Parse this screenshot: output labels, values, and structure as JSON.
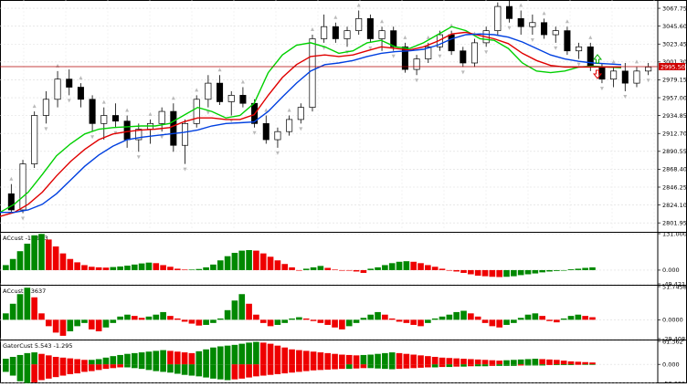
{
  "chart_data": {
    "type": "candlestick",
    "panels": [
      {
        "id": "price",
        "y_ticks": [
          3067.75,
          3045.6,
          3023.45,
          3001.3,
          2979.15,
          2957.0,
          2934.85,
          2912.7,
          2890.55,
          2868.4,
          2846.25,
          2824.1,
          2801.95
        ],
        "y_tick_labels": [
          "3067.75",
          "3045.60",
          "3023.45",
          "3001.30",
          "2979.15",
          "2957.00",
          "2934.85",
          "2912.70",
          "2890.55",
          "2868.40",
          "2846.25",
          "2824.10",
          "2801.95"
        ],
        "ylim": [
          2792,
          3078
        ],
        "current_price": 2995.5,
        "current_price_label": "2995.50",
        "horizontal_line": 2995.5,
        "grid": true,
        "series": [
          {
            "indicator": "alligator-lips",
            "color": "#00d000",
            "values": [
              2815,
              2825,
              2840,
              2862,
              2885,
              2900,
              2912,
              2918,
              2920,
              2921,
              2922,
              2922,
              2925,
              2935,
              2945,
              2940,
              2932,
              2935,
              2950,
              2988,
              3010,
              3022,
              3025,
              3020,
              3012,
              3015,
              3025,
              3028,
              3020,
              3018,
              3025,
              3035,
              3045,
              3040,
              3030,
              3028,
              3018,
              3000,
              2990,
              2988,
              2990,
              2995,
              2996,
              2995,
              2994
            ]
          },
          {
            "indicator": "alligator-teeth",
            "color": "#e00000",
            "values": [
              2810,
              2815,
              2825,
              2840,
              2860,
              2878,
              2893,
              2905,
              2912,
              2915,
              2917,
              2918,
              2920,
              2927,
              2932,
              2932,
              2930,
              2930,
              2936,
              2960,
              2982,
              2998,
              3008,
              3010,
              3008,
              3010,
              3015,
              3020,
              3018,
              3016,
              3020,
              3027,
              3036,
              3038,
              3034,
              3030,
              3024,
              3012,
              3003,
              2997,
              2995,
              2995,
              2995,
              2995,
              2995
            ]
          },
          {
            "indicator": "alligator-jaw",
            "color": "#0040e0",
            "values": [
              2815,
              2815,
              2818,
              2825,
              2838,
              2855,
              2872,
              2886,
              2897,
              2905,
              2908,
              2910,
              2912,
              2914,
              2917,
              2922,
              2925,
              2926,
              2927,
              2940,
              2958,
              2975,
              2990,
              2998,
              3000,
              3003,
              3008,
              3012,
              3014,
              3015,
              3017,
              3022,
              3030,
              3035,
              3036,
              3035,
              3032,
              3026,
              3018,
              3010,
              3005,
              3002,
              3000,
              2999,
              2998
            ]
          }
        ]
      },
      {
        "id": "ac1",
        "label": "ACcust -10.903",
        "y_ticks": [
          131.0,
          0.0,
          -49.421
        ],
        "y_tick_labels": [
          "131.000",
          "0.000",
          "-49.421"
        ],
        "ylim": [
          -49.421,
          131.0
        ],
        "histogram": [
          18,
          40,
          68,
          95,
          125,
          130,
          110,
          85,
          60,
          40,
          28,
          18,
          12,
          10,
          9,
          11,
          13,
          16,
          20,
          24,
          27,
          25,
          18,
          12,
          5,
          2,
          2,
          4,
          10,
          20,
          35,
          50,
          62,
          70,
          72,
          70,
          60,
          48,
          35,
          22,
          10,
          0,
          5,
          10,
          15,
          8,
          2,
          0,
          -2,
          -5,
          -10,
          5,
          10,
          18,
          25,
          30,
          32,
          30,
          25,
          18,
          12,
          5,
          0,
          -5,
          -10,
          -15,
          -20,
          -22,
          -24,
          -25,
          -24,
          -22,
          -18,
          -15,
          -12,
          -8,
          -5,
          -3,
          0,
          3,
          5,
          8,
          10
        ]
      },
      {
        "id": "ac2",
        "label": "ACcust 1.3637",
        "y_ticks": [
          51.7458,
          0.0,
          -29.4081
        ],
        "y_tick_labels": [
          "51.7458",
          "0.0000",
          "-29.4081"
        ],
        "ylim": [
          -29.4081,
          51.7458
        ],
        "histogram": [
          10,
          25,
          40,
          50,
          35,
          10,
          -10,
          -20,
          -25,
          -18,
          -10,
          -5,
          -15,
          -18,
          -12,
          -5,
          5,
          8,
          6,
          3,
          5,
          8,
          12,
          6,
          2,
          -3,
          -6,
          -9,
          -8,
          -5,
          2,
          15,
          30,
          40,
          25,
          8,
          -5,
          -10,
          -8,
          -5,
          2,
          4,
          2,
          -2,
          -5,
          -8,
          -12,
          -15,
          -10,
          -5,
          3,
          8,
          12,
          8,
          2,
          -3,
          -5,
          -8,
          -10,
          -5,
          2,
          5,
          8,
          12,
          14,
          10,
          5,
          -5,
          -10,
          -12,
          -8,
          -5,
          3,
          8,
          10,
          6,
          -2,
          -4,
          2,
          6,
          8,
          6,
          4
        ]
      },
      {
        "id": "gator",
        "label": "GatorCust 5.543 -1.295",
        "y_ticks": [
          61.362,
          0.0,
          -50.632
        ],
        "y_tick_labels": [
          "61.362",
          "0.000",
          "-50.632"
        ],
        "ylim": [
          -50.632,
          61.362
        ],
        "upper": [
          15,
          20,
          25,
          30,
          32,
          28,
          24,
          20,
          18,
          16,
          14,
          12,
          12,
          14,
          18,
          22,
          25,
          28,
          30,
          32,
          34,
          36,
          38,
          36,
          34,
          32,
          30,
          35,
          40,
          45,
          48,
          50,
          52,
          55,
          58,
          60,
          58,
          55,
          50,
          45,
          40,
          38,
          36,
          34,
          32,
          30,
          28,
          26,
          25,
          24,
          25,
          26,
          28,
          30,
          32,
          30,
          28,
          26,
          24,
          22,
          20,
          18,
          17,
          16,
          15,
          14,
          13,
          12,
          11,
          10,
          11,
          12,
          13,
          14,
          15,
          14,
          13,
          12,
          10,
          8,
          7,
          6,
          5
        ],
        "lower": [
          -20,
          -30,
          -45,
          -50,
          -48,
          -42,
          -38,
          -34,
          -30,
          -26,
          -24,
          -20,
          -18,
          -15,
          -12,
          -10,
          -8,
          -8,
          -10,
          -12,
          -15,
          -18,
          -20,
          -22,
          -25,
          -28,
          -30,
          -32,
          -35,
          -38,
          -40,
          -42,
          -40,
          -38,
          -35,
          -32,
          -30,
          -28,
          -26,
          -24,
          -22,
          -20,
          -18,
          -16,
          -15,
          -14,
          -13,
          -12,
          -12,
          -11,
          -10,
          -10,
          -11,
          -12,
          -13,
          -12,
          -11,
          -10,
          -9,
          -8,
          -8,
          -7,
          -7,
          -6,
          -6,
          -5,
          -5,
          -5,
          -4,
          -4,
          -4,
          -4,
          -3,
          -3,
          -3,
          -3,
          -2,
          -2,
          -2,
          -2,
          -1,
          -1,
          -1
        ]
      }
    ],
    "candles": [
      [
        2838,
        2850,
        2815,
        2818
      ],
      [
        2818,
        2880,
        2814,
        2875
      ],
      [
        2875,
        2940,
        2870,
        2935
      ],
      [
        2935,
        2965,
        2925,
        2955
      ],
      [
        2955,
        2990,
        2945,
        2980
      ],
      [
        2980,
        2992,
        2960,
        2970
      ],
      [
        2970,
        2975,
        2945,
        2955
      ],
      [
        2955,
        2960,
        2915,
        2925
      ],
      [
        2925,
        2945,
        2905,
        2935
      ],
      [
        2935,
        2950,
        2920,
        2928
      ],
      [
        2928,
        2935,
        2895,
        2905
      ],
      [
        2905,
        2925,
        2890,
        2918
      ],
      [
        2918,
        2930,
        2900,
        2925
      ],
      [
        2925,
        2945,
        2915,
        2940
      ],
      [
        2940,
        2950,
        2890,
        2898
      ],
      [
        2898,
        2930,
        2875,
        2925
      ],
      [
        2925,
        2960,
        2920,
        2955
      ],
      [
        2955,
        2985,
        2945,
        2975
      ],
      [
        2975,
        2985,
        2948,
        2952
      ],
      [
        2952,
        2965,
        2935,
        2960
      ],
      [
        2960,
        2970,
        2945,
        2950
      ],
      [
        2950,
        2955,
        2920,
        2925
      ],
      [
        2925,
        2935,
        2900,
        2905
      ],
      [
        2905,
        2920,
        2895,
        2915
      ],
      [
        2915,
        2935,
        2910,
        2930
      ],
      [
        2930,
        2950,
        2925,
        2945
      ],
      [
        2945,
        3035,
        2940,
        3030
      ],
      [
        3030,
        3060,
        3025,
        3045
      ],
      [
        3045,
        3050,
        3025,
        3030
      ],
      [
        3030,
        3045,
        3020,
        3040
      ],
      [
        3040,
        3065,
        3035,
        3055
      ],
      [
        3055,
        3060,
        3025,
        3030
      ],
      [
        3030,
        3045,
        3015,
        3040
      ],
      [
        3040,
        3045,
        3015,
        3020
      ],
      [
        3020,
        3025,
        2988,
        2992
      ],
      [
        2992,
        3010,
        2985,
        3005
      ],
      [
        3005,
        3025,
        3000,
        3020
      ],
      [
        3020,
        3040,
        3015,
        3035
      ],
      [
        3035,
        3040,
        3010,
        3015
      ],
      [
        3015,
        3020,
        2995,
        3000
      ],
      [
        3000,
        3030,
        2995,
        3025
      ],
      [
        3025,
        3045,
        3020,
        3040
      ],
      [
        3040,
        3075,
        3035,
        3070
      ],
      [
        3070,
        3080,
        3050,
        3055
      ],
      [
        3055,
        3065,
        3035,
        3045
      ],
      [
        3045,
        3060,
        3035,
        3050
      ],
      [
        3050,
        3055,
        3030,
        3035
      ],
      [
        3035,
        3045,
        3025,
        3040
      ],
      [
        3040,
        3045,
        3010,
        3015
      ],
      [
        3015,
        3025,
        3005,
        3020
      ],
      [
        3020,
        3025,
        2990,
        2995
      ],
      [
        2995,
        3000,
        2975,
        2980
      ],
      [
        2980,
        2995,
        2970,
        2990
      ],
      [
        2990,
        3000,
        2965,
        2975
      ],
      [
        2975,
        2995,
        2970,
        2990
      ],
      [
        2990,
        3000,
        2985,
        2995
      ]
    ],
    "arrows": {
      "up_color": "#00b000",
      "down_color": "#e00000"
    }
  }
}
